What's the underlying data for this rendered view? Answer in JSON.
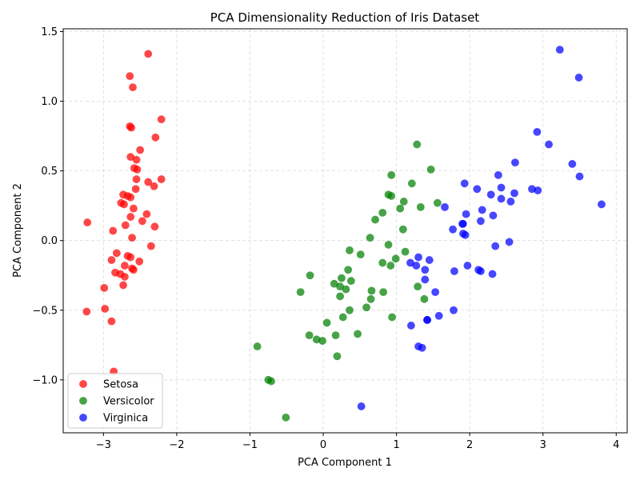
{
  "chart_data": {
    "type": "scatter",
    "title": "PCA Dimensionality Reduction of Iris Dataset",
    "xlabel": "PCA Component 1",
    "ylabel": "PCA Component 2",
    "xlim": [
      -3.55,
      4.15
    ],
    "ylim": [
      -1.38,
      1.52
    ],
    "xticks": [
      -3,
      -2,
      -1,
      0,
      1,
      2,
      3,
      4
    ],
    "yticks": [
      -1.0,
      -0.5,
      0.0,
      0.5,
      1.0,
      1.5
    ],
    "xtick_labels": [
      "−3",
      "−2",
      "−1",
      "0",
      "1",
      "2",
      "3",
      "4"
    ],
    "ytick_labels": [
      "−1.0",
      "−0.5",
      "0.0",
      "0.5",
      "1.0",
      "1.5"
    ],
    "grid": true,
    "legend_position": "lower-left",
    "series": [
      {
        "name": "Setosa",
        "color": "#ff0000",
        "points": [
          [
            -2.39,
            1.34
          ],
          [
            -2.64,
            1.18
          ],
          [
            -2.6,
            1.1
          ],
          [
            -2.21,
            0.87
          ],
          [
            -2.64,
            0.82
          ],
          [
            -2.62,
            0.81
          ],
          [
            -2.29,
            0.74
          ],
          [
            -2.5,
            0.65
          ],
          [
            -2.63,
            0.6
          ],
          [
            -2.55,
            0.58
          ],
          [
            -2.58,
            0.52
          ],
          [
            -2.54,
            0.51
          ],
          [
            -2.21,
            0.44
          ],
          [
            -2.55,
            0.44
          ],
          [
            -2.39,
            0.42
          ],
          [
            -2.31,
            0.39
          ],
          [
            -2.56,
            0.37
          ],
          [
            -2.73,
            0.33
          ],
          [
            -2.67,
            0.32
          ],
          [
            -2.63,
            0.31
          ],
          [
            -2.76,
            0.27
          ],
          [
            -2.72,
            0.26
          ],
          [
            -2.59,
            0.23
          ],
          [
            -2.41,
            0.19
          ],
          [
            -2.63,
            0.17
          ],
          [
            -2.47,
            0.14
          ],
          [
            -3.22,
            0.13
          ],
          [
            -2.7,
            0.11
          ],
          [
            -2.3,
            0.1
          ],
          [
            -2.87,
            0.07
          ],
          [
            -2.61,
            0.02
          ],
          [
            -2.35,
            -0.04
          ],
          [
            -2.82,
            -0.09
          ],
          [
            -2.67,
            -0.11
          ],
          [
            -2.63,
            -0.12
          ],
          [
            -2.89,
            -0.14
          ],
          [
            -2.51,
            -0.15
          ],
          [
            -2.71,
            -0.18
          ],
          [
            -2.61,
            -0.2
          ],
          [
            -2.59,
            -0.21
          ],
          [
            -2.84,
            -0.23
          ],
          [
            -2.77,
            -0.24
          ],
          [
            -2.71,
            -0.26
          ],
          [
            -2.73,
            -0.32
          ],
          [
            -2.99,
            -0.34
          ],
          [
            -3.23,
            -0.51
          ],
          [
            -2.98,
            -0.49
          ],
          [
            -2.89,
            -0.58
          ],
          [
            -2.86,
            -0.94
          ]
        ]
      },
      {
        "name": "Versicolor",
        "color": "#008000",
        "points": [
          [
            1.28,
            0.69
          ],
          [
            1.47,
            0.51
          ],
          [
            0.93,
            0.47
          ],
          [
            1.21,
            0.41
          ],
          [
            0.89,
            0.33
          ],
          [
            0.93,
            0.32
          ],
          [
            1.1,
            0.28
          ],
          [
            1.56,
            0.27
          ],
          [
            1.33,
            0.24
          ],
          [
            1.05,
            0.23
          ],
          [
            0.81,
            0.2
          ],
          [
            0.71,
            0.15
          ],
          [
            1.09,
            0.08
          ],
          [
            0.64,
            0.02
          ],
          [
            0.89,
            -0.03
          ],
          [
            0.36,
            -0.07
          ],
          [
            1.12,
            -0.08
          ],
          [
            0.51,
            -0.1
          ],
          [
            0.99,
            -0.13
          ],
          [
            0.81,
            -0.16
          ],
          [
            0.92,
            -0.18
          ],
          [
            0.34,
            -0.21
          ],
          [
            -0.18,
            -0.25
          ],
          [
            0.25,
            -0.27
          ],
          [
            0.38,
            -0.29
          ],
          [
            0.15,
            -0.31
          ],
          [
            0.23,
            -0.33
          ],
          [
            1.29,
            -0.33
          ],
          [
            0.31,
            -0.35
          ],
          [
            0.66,
            -0.36
          ],
          [
            -0.31,
            -0.37
          ],
          [
            0.82,
            -0.37
          ],
          [
            0.23,
            -0.4
          ],
          [
            1.38,
            -0.42
          ],
          [
            0.65,
            -0.42
          ],
          [
            0.59,
            -0.48
          ],
          [
            0.36,
            -0.5
          ],
          [
            0.94,
            -0.55
          ],
          [
            0.27,
            -0.55
          ],
          [
            0.05,
            -0.59
          ],
          [
            0.47,
            -0.67
          ],
          [
            -0.19,
            -0.68
          ],
          [
            0.17,
            -0.68
          ],
          [
            -0.09,
            -0.71
          ],
          [
            -0.01,
            -0.72
          ],
          [
            0.19,
            -0.83
          ],
          [
            -0.9,
            -0.76
          ],
          [
            -0.75,
            -1.0
          ],
          [
            -0.71,
            -1.01
          ],
          [
            -0.51,
            -1.27
          ]
        ]
      },
      {
        "name": "Virginica",
        "color": "#0000ff",
        "points": [
          [
            3.23,
            1.37
          ],
          [
            3.49,
            1.17
          ],
          [
            2.92,
            0.78
          ],
          [
            3.08,
            0.69
          ],
          [
            2.62,
            0.56
          ],
          [
            3.4,
            0.55
          ],
          [
            2.39,
            0.47
          ],
          [
            3.5,
            0.46
          ],
          [
            1.93,
            0.41
          ],
          [
            2.43,
            0.38
          ],
          [
            2.1,
            0.37
          ],
          [
            2.85,
            0.37
          ],
          [
            2.93,
            0.36
          ],
          [
            2.61,
            0.34
          ],
          [
            2.29,
            0.33
          ],
          [
            2.43,
            0.3
          ],
          [
            2.56,
            0.28
          ],
          [
            3.8,
            0.26
          ],
          [
            1.66,
            0.24
          ],
          [
            2.17,
            0.22
          ],
          [
            1.95,
            0.19
          ],
          [
            2.32,
            0.18
          ],
          [
            2.15,
            0.14
          ],
          [
            1.9,
            0.12
          ],
          [
            1.91,
            0.12
          ],
          [
            1.77,
            0.08
          ],
          [
            1.91,
            0.05
          ],
          [
            1.94,
            0.04
          ],
          [
            2.35,
            -0.04
          ],
          [
            2.54,
            -0.01
          ],
          [
            1.3,
            -0.12
          ],
          [
            1.45,
            -0.14
          ],
          [
            1.19,
            -0.16
          ],
          [
            1.27,
            -0.18
          ],
          [
            1.97,
            -0.18
          ],
          [
            1.39,
            -0.21
          ],
          [
            2.12,
            -0.21
          ],
          [
            2.15,
            -0.22
          ],
          [
            1.79,
            -0.22
          ],
          [
            2.31,
            -0.24
          ],
          [
            1.39,
            -0.28
          ],
          [
            1.53,
            -0.37
          ],
          [
            1.78,
            -0.5
          ],
          [
            1.58,
            -0.54
          ],
          [
            1.42,
            -0.57
          ],
          [
            1.42,
            -0.57
          ],
          [
            1.2,
            -0.61
          ],
          [
            1.3,
            -0.76
          ],
          [
            1.35,
            -0.77
          ],
          [
            0.52,
            -1.19
          ]
        ]
      }
    ]
  }
}
